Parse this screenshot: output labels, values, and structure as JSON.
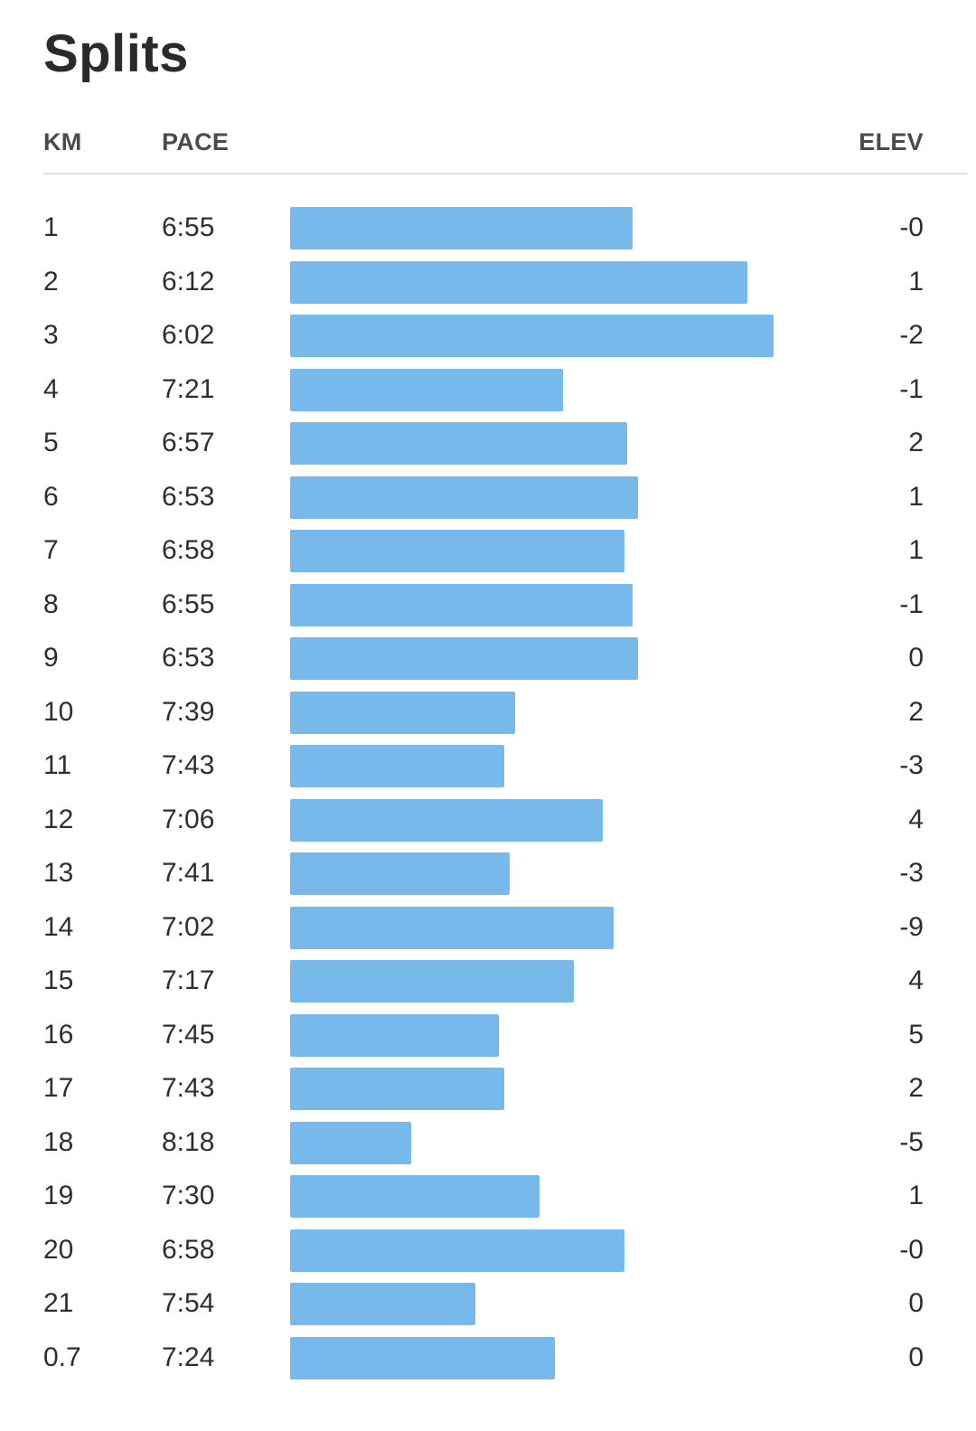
{
  "title": "Splits",
  "columns": {
    "km": "KM",
    "pace": "PACE",
    "elev": "ELEV"
  },
  "bar_color": "#76b9ea",
  "splits": [
    {
      "km": "1",
      "pace": "6:55",
      "elev": "-0"
    },
    {
      "km": "2",
      "pace": "6:12",
      "elev": "1"
    },
    {
      "km": "3",
      "pace": "6:02",
      "elev": "-2"
    },
    {
      "km": "4",
      "pace": "7:21",
      "elev": "-1"
    },
    {
      "km": "5",
      "pace": "6:57",
      "elev": "2"
    },
    {
      "km": "6",
      "pace": "6:53",
      "elev": "1"
    },
    {
      "km": "7",
      "pace": "6:58",
      "elev": "1"
    },
    {
      "km": "8",
      "pace": "6:55",
      "elev": "-1"
    },
    {
      "km": "9",
      "pace": "6:53",
      "elev": "0"
    },
    {
      "km": "10",
      "pace": "7:39",
      "elev": "2"
    },
    {
      "km": "11",
      "pace": "7:43",
      "elev": "-3"
    },
    {
      "km": "12",
      "pace": "7:06",
      "elev": "4"
    },
    {
      "km": "13",
      "pace": "7:41",
      "elev": "-3"
    },
    {
      "km": "14",
      "pace": "7:02",
      "elev": "-9"
    },
    {
      "km": "15",
      "pace": "7:17",
      "elev": "4"
    },
    {
      "km": "16",
      "pace": "7:45",
      "elev": "5"
    },
    {
      "km": "17",
      "pace": "7:43",
      "elev": "2"
    },
    {
      "km": "18",
      "pace": "8:18",
      "elev": "-5"
    },
    {
      "km": "19",
      "pace": "7:30",
      "elev": "1"
    },
    {
      "km": "20",
      "pace": "6:58",
      "elev": "-0"
    },
    {
      "km": "21",
      "pace": "7:54",
      "elev": "0"
    },
    {
      "km": "0.7",
      "pace": "7:24",
      "elev": "0"
    }
  ]
}
